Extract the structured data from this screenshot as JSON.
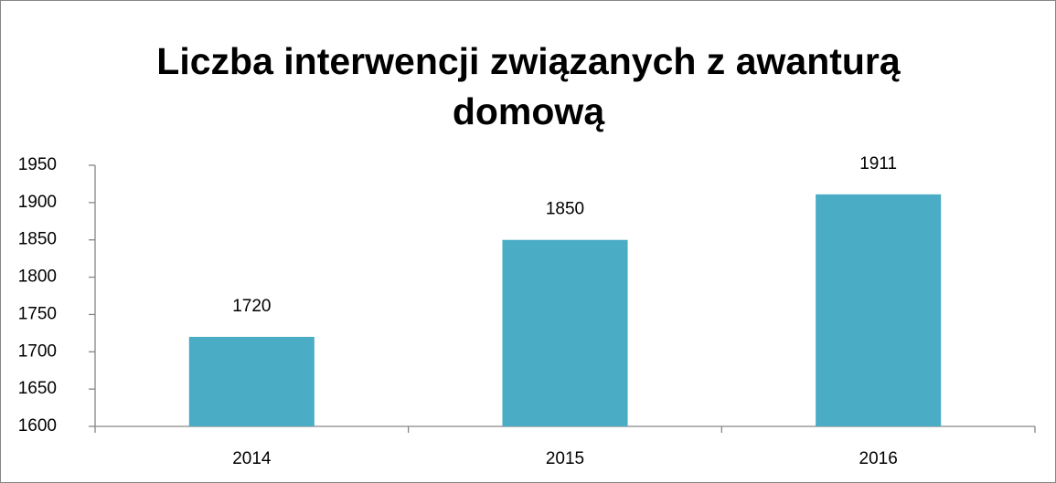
{
  "chart_data": {
    "type": "bar",
    "title": "Liczba interwencji związanych z awanturą domową",
    "categories": [
      "2014",
      "2015",
      "2016"
    ],
    "values": [
      1720,
      1850,
      1911
    ],
    "color": "#4bacc6",
    "ylim": [
      1600,
      1950
    ],
    "yticks": [
      1600,
      1650,
      1700,
      1750,
      1800,
      1850,
      1900,
      1950
    ],
    "grid": false
  }
}
